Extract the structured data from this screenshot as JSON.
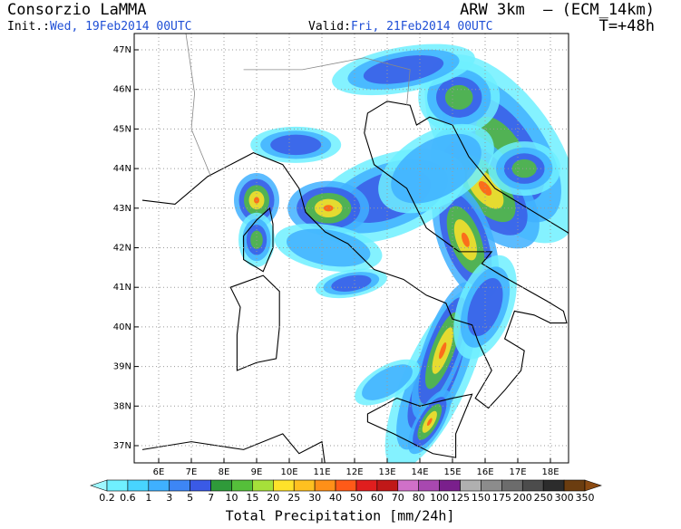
{
  "header": {
    "title": "Consorzio LaMMA",
    "model": "ARW 3km  – (ECM_14km)",
    "init_label": "Init.:",
    "init_value": "Wed, 19Feb2014 00UTC",
    "valid_label": "Valid:",
    "valid_value": "Fri, 21Feb2014 00UTC",
    "lead_time": "T=+48h"
  },
  "map": {
    "lat_labels": [
      "47N",
      "46N",
      "45N",
      "44N",
      "43N",
      "42N",
      "41N",
      "40N",
      "39N",
      "38N",
      "37N"
    ],
    "lon_labels": [
      "6E",
      "7E",
      "8E",
      "9E",
      "10E",
      "11E",
      "12E",
      "13E",
      "14E",
      "15E",
      "16E",
      "17E",
      "18E"
    ]
  },
  "colorbar": {
    "labels": [
      0.2,
      0.6,
      1,
      3,
      5,
      7,
      10,
      15,
      20,
      25,
      30,
      40,
      50,
      60,
      70,
      80,
      100,
      125,
      150,
      175,
      200,
      250,
      300,
      350
    ],
    "colors": [
      "#9ef8ff",
      "#6ff0ff",
      "#48d4ff",
      "#3fb0ff",
      "#3d86f5",
      "#3a5ae6",
      "#2f9a3a",
      "#55bf3a",
      "#a6e03a",
      "#ffe22a",
      "#ffc020",
      "#ff9018",
      "#ff5a18",
      "#e01e1e",
      "#c01818",
      "#d070c8",
      "#a848b0",
      "#7a1f8c",
      "#b0b0b0",
      "#8c8c8c",
      "#6c6c6c",
      "#4c4c4c",
      "#2c2c2c",
      "#6b3d10",
      "#8b4a12"
    ],
    "title": "Total Precipitation [mm/24h]"
  }
}
